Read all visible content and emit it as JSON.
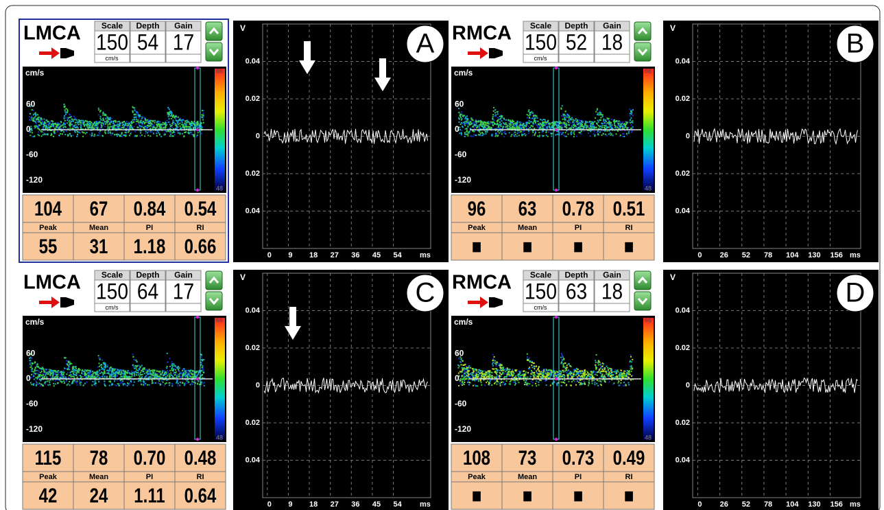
{
  "panels": [
    {
      "letter": "A",
      "vessel": "LMCA",
      "settings": {
        "labels": [
          "Scale",
          "Depth",
          "Gain"
        ],
        "values": [
          150,
          54,
          17
        ],
        "unit": "cm/s"
      },
      "spectrum": {
        "unit": "cm/s",
        "ylim": [
          -150,
          150
        ],
        "yticks": [
          60,
          0,
          -60,
          -120
        ],
        "colorbar": [
          "66",
          "48"
        ]
      },
      "measurements": {
        "top": [
          "104",
          "67",
          "0.84",
          "0.54"
        ],
        "labels": [
          "Peak",
          "Mean",
          "PI",
          "RI"
        ],
        "bottom": [
          "55",
          "31",
          "1.18",
          "0.66"
        ]
      },
      "waveform": {
        "y_label": "V",
        "ylim": [
          -0.06,
          0.06
        ],
        "yticks": [
          0.04,
          0.02,
          0,
          {
            "value": -0.02,
            "label": "0.02"
          },
          {
            "value": -0.04,
            "label": "0.04"
          }
        ],
        "xlim": [
          -2,
          70
        ],
        "xticks": [
          0,
          9,
          18,
          27,
          36,
          45,
          54
        ],
        "x_unit": "ms"
      }
    },
    {
      "letter": "B",
      "vessel": "RMCA",
      "settings": {
        "labels": [
          "Scale",
          "Depth",
          "Gain"
        ],
        "values": [
          150,
          52,
          18
        ],
        "unit": "cm/s"
      },
      "spectrum": {
        "unit": "cm/s",
        "ylim": [
          -150,
          150
        ],
        "yticks": [
          60,
          0,
          -60,
          -120
        ],
        "colorbar": [
          "66",
          "48"
        ]
      },
      "measurements": {
        "top": [
          "96",
          "63",
          "0.78",
          "0.51"
        ],
        "labels": [
          "Peak",
          "Mean",
          "PI",
          "RI"
        ],
        "bottom": [
          "■",
          "■",
          "■",
          "■"
        ]
      },
      "waveform": {
        "y_label": "V",
        "ylim": [
          -0.06,
          0.06
        ],
        "yticks": [
          0.04,
          0.02,
          0,
          {
            "value": -0.02,
            "label": "0.02"
          },
          {
            "value": -0.04,
            "label": "0.04"
          }
        ],
        "xlim": [
          -6,
          192
        ],
        "xticks": [
          0,
          26,
          52,
          78,
          104,
          130,
          156
        ],
        "x_unit": "ms"
      }
    },
    {
      "letter": "C",
      "vessel": "LMCA",
      "settings": {
        "labels": [
          "Scale",
          "Depth",
          "Gain"
        ],
        "values": [
          150,
          64,
          17
        ],
        "unit": "cm/s"
      },
      "spectrum": {
        "unit": "cm/s",
        "ylim": [
          -150,
          150
        ],
        "yticks": [
          60,
          0,
          -60,
          -120
        ],
        "colorbar": [
          "66",
          "48"
        ]
      },
      "measurements": {
        "top": [
          "115",
          "78",
          "0.70",
          "0.48"
        ],
        "labels": [
          "Peak",
          "Mean",
          "PI",
          "RI"
        ],
        "bottom": [
          "42",
          "24",
          "1.11",
          "0.64"
        ]
      },
      "waveform": {
        "y_label": "V",
        "ylim": [
          -0.06,
          0.06
        ],
        "yticks": [
          0.04,
          0.02,
          0,
          {
            "value": -0.02,
            "label": "0.02"
          },
          {
            "value": -0.04,
            "label": "0.04"
          }
        ],
        "xlim": [
          -2,
          70
        ],
        "xticks": [
          0,
          9,
          18,
          27,
          36,
          45,
          54
        ],
        "x_unit": "ms"
      }
    },
    {
      "letter": "D",
      "vessel": "RMCA",
      "settings": {
        "labels": [
          "Scale",
          "Depth",
          "Gain"
        ],
        "values": [
          150,
          63,
          18
        ],
        "unit": "cm/s"
      },
      "spectrum": {
        "unit": "cm/s",
        "ylim": [
          -150,
          150
        ],
        "yticks": [
          60,
          0,
          -60,
          -120
        ],
        "colorbar": [
          "66",
          "48"
        ]
      },
      "measurements": {
        "top": [
          "108",
          "73",
          "0.73",
          "0.49"
        ],
        "labels": [
          "Peak",
          "Mean",
          "PI",
          "RI"
        ],
        "bottom": [
          "■",
          "■",
          "■",
          "■"
        ]
      },
      "waveform": {
        "y_label": "V",
        "ylim": [
          -0.06,
          0.06
        ],
        "yticks": [
          0.04,
          0.02,
          0,
          {
            "value": -0.02,
            "label": "0.02"
          },
          {
            "value": -0.04,
            "label": "0.04"
          }
        ],
        "xlim": [
          -6,
          192
        ],
        "xticks": [
          0,
          26,
          52,
          78,
          104,
          130,
          156
        ],
        "x_unit": "ms"
      }
    }
  ]
}
